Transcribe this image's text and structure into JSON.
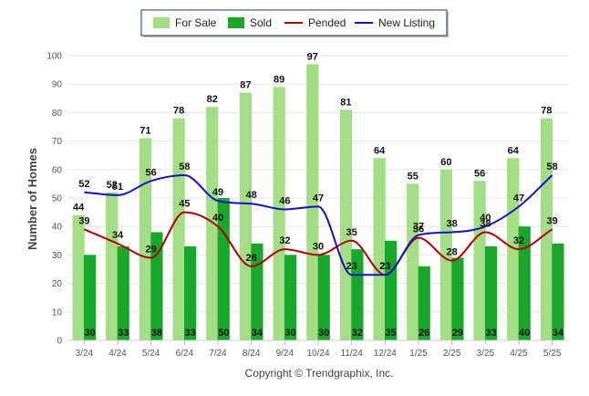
{
  "chart_data": {
    "type": "bar",
    "title": "",
    "xlabel": "",
    "ylabel": "Number of Homes",
    "ylim": [
      0,
      100
    ],
    "yticks": [
      0,
      10,
      20,
      30,
      40,
      50,
      60,
      70,
      80,
      90,
      100
    ],
    "grid": "horizontal",
    "legend_position": "top-center",
    "categories": [
      "3/24",
      "4/24",
      "5/24",
      "6/24",
      "7/24",
      "8/24",
      "9/24",
      "10/24",
      "11/24",
      "12/24",
      "1/25",
      "2/25",
      "3/25",
      "4/25",
      "5/25"
    ],
    "series": [
      {
        "name": "For Sale",
        "kind": "bar",
        "color": "#a3de84",
        "values": [
          44,
          52,
          71,
          78,
          82,
          87,
          89,
          97,
          81,
          64,
          55,
          60,
          56,
          64,
          78
        ]
      },
      {
        "name": "Sold",
        "kind": "bar",
        "color": "#17a72b",
        "values": [
          30,
          33,
          38,
          33,
          50,
          34,
          30,
          30,
          32,
          35,
          26,
          29,
          33,
          40,
          34
        ]
      },
      {
        "name": "Pended",
        "kind": "line",
        "color": "#b30000",
        "values": [
          39,
          34,
          29,
          45,
          40,
          26,
          32,
          30,
          35,
          23,
          36,
          28,
          38,
          32,
          39
        ]
      },
      {
        "name": "New Listing",
        "kind": "line",
        "color": "#1111cc",
        "values": [
          52,
          51,
          56,
          58,
          49,
          48,
          46,
          47,
          23,
          23,
          37,
          38,
          40,
          47,
          58
        ]
      }
    ]
  },
  "footer": {
    "copyright": "Copyright © Trendgraphix, Inc."
  }
}
